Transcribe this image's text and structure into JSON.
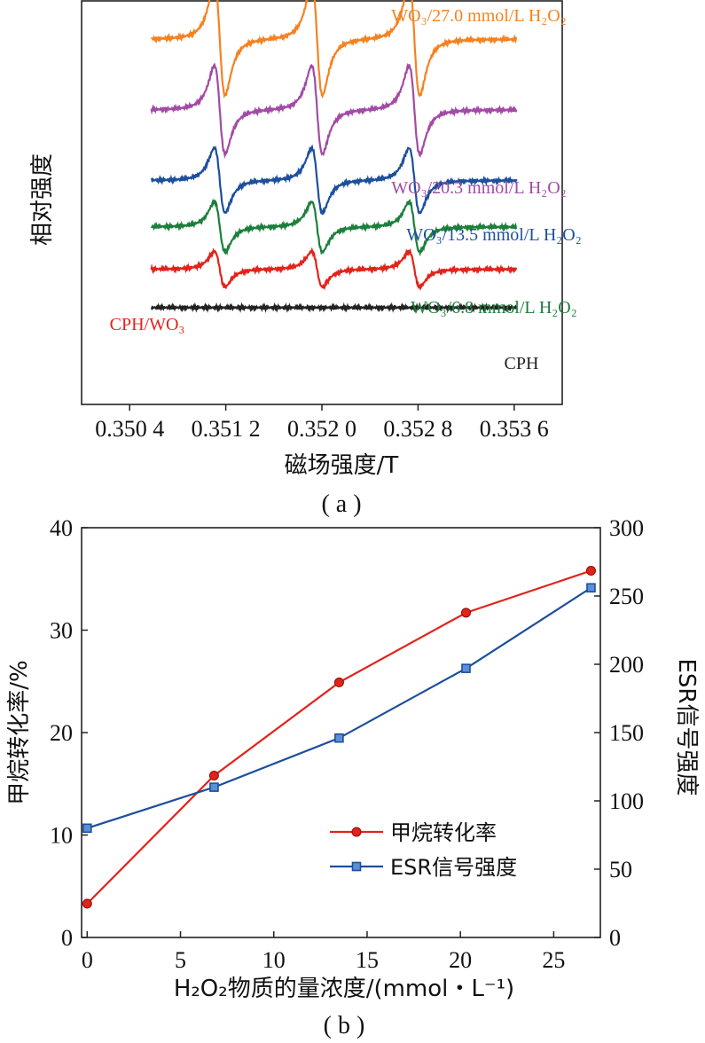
{
  "chart_data": [
    {
      "id": "a",
      "type": "line",
      "caption": "( a )",
      "xlabel": "磁场强度/T",
      "ylabel": "相对强度",
      "xlim": [
        0.35,
        0.354
      ],
      "x_ticks": [
        {
          "value": 0.3504,
          "label": "0.350 4"
        },
        {
          "value": 0.3512,
          "label": "0.351 2"
        },
        {
          "value": 0.352,
          "label": "0.352 0"
        },
        {
          "value": 0.3528,
          "label": "0.352 8"
        },
        {
          "value": 0.3536,
          "label": "0.353 6"
        }
      ],
      "x_range": [
        0.35058,
        0.35362
      ],
      "peak_centers": [
        0.35115,
        0.35196,
        0.35277
      ],
      "grid": false,
      "series": [
        {
          "name": "WO₃/27.0 mmol/L H₂O₂",
          "color": "#f58220",
          "baseline": 0.905,
          "amp": 0.19
        },
        {
          "name": "WO₃/20.3 mmol/L H₂O₂",
          "color": "#a24aa6",
          "baseline": 0.73,
          "amp": 0.15
        },
        {
          "name": "WO₃/13.5 mmol/L H₂O₂",
          "color": "#1c4f9c",
          "baseline": 0.555,
          "amp": 0.11
        },
        {
          "name": "WO₃/6.8 mmol/L H₂O₂",
          "color": "#1b7f3a",
          "baseline": 0.44,
          "amp": 0.085
        },
        {
          "name": "CPH/WO₃",
          "color": "#e2231a",
          "baseline": 0.335,
          "amp": 0.06
        },
        {
          "name": "CPH",
          "color": "#222222",
          "baseline": 0.24,
          "amp": 0
        }
      ]
    },
    {
      "id": "b",
      "type": "line",
      "caption": "( b )",
      "xlabel": "H₂O₂物质的量浓度/(mmol・L⁻¹)",
      "ylabel_left": "甲烷转化率/%",
      "ylabel_right": "ESR信号强度",
      "xlim": [
        -0.3,
        27.5
      ],
      "x_ticks": [
        0,
        5,
        10,
        15,
        20,
        25
      ],
      "ylim_left": [
        0,
        40
      ],
      "y_ticks_left": [
        0,
        10,
        20,
        30,
        40
      ],
      "ylim_right": [
        0,
        300
      ],
      "y_ticks_right": [
        0,
        50,
        100,
        150,
        200,
        250,
        300
      ],
      "grid": false,
      "legend_position": "lower-right",
      "series": [
        {
          "name": "甲烷转化率",
          "axis": "left",
          "marker": "circle",
          "color": "#e2231a",
          "x": [
            0,
            6.8,
            13.5,
            20.3,
            27.0
          ],
          "y": [
            3.3,
            15.8,
            24.9,
            31.7,
            35.8
          ]
        },
        {
          "name": "ESR信号强度",
          "axis": "right",
          "marker": "square",
          "color": "#1c4f9c",
          "x": [
            0,
            6.8,
            13.5,
            20.3,
            27.0
          ],
          "y": [
            80,
            110,
            146,
            197,
            256
          ]
        }
      ]
    }
  ]
}
